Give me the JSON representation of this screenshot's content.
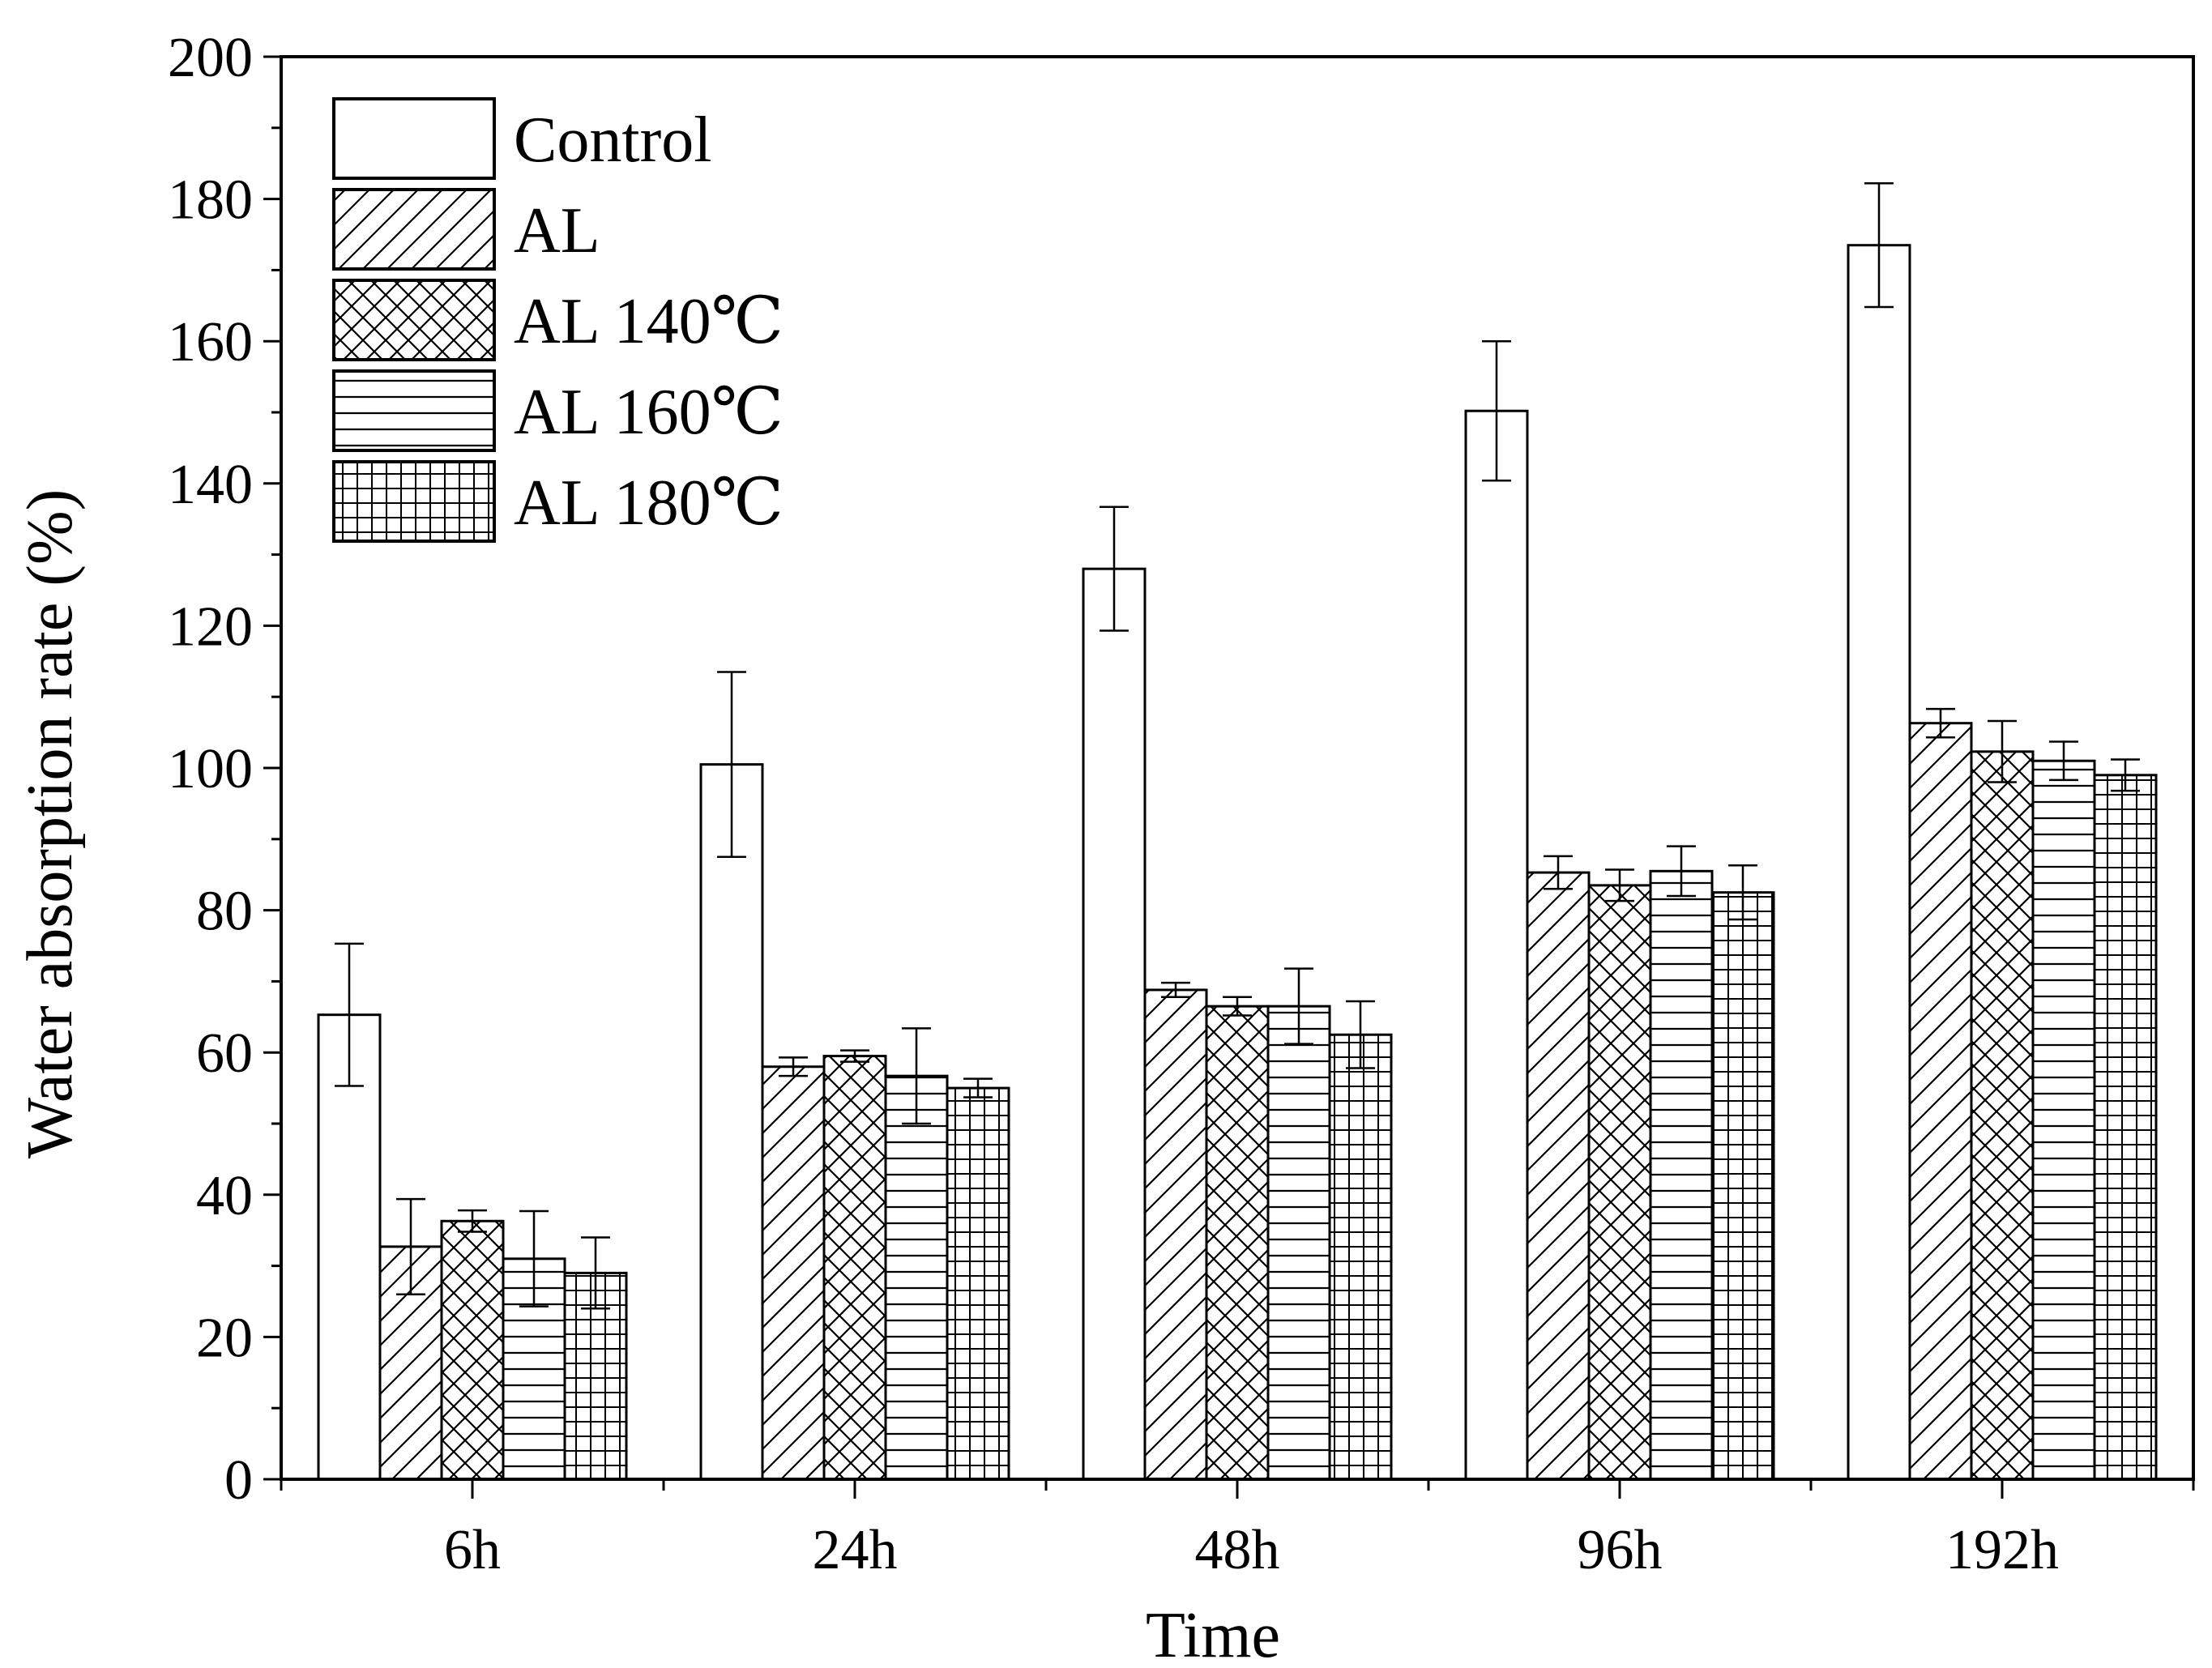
{
  "chart_data": {
    "type": "bar",
    "title": "",
    "xlabel": "Time",
    "ylabel": "Water absorption rate (%)",
    "ylim": [
      0,
      200
    ],
    "yticks": [
      0,
      20,
      40,
      60,
      80,
      100,
      120,
      140,
      160,
      180,
      200
    ],
    "categories": [
      "6h",
      "24h",
      "48h",
      "96h",
      "192h"
    ],
    "legend_position": "top-left",
    "series": [
      {
        "name": "Control",
        "pattern": "none",
        "values": [
          65.3,
          100.5,
          128.0,
          150.2,
          173.5
        ],
        "errors": [
          10.0,
          13.0,
          8.7,
          9.8,
          8.7
        ]
      },
      {
        "name": "AL",
        "pattern": "diagonal",
        "values": [
          32.7,
          58.0,
          68.8,
          85.3,
          106.3
        ],
        "errors": [
          6.7,
          1.3,
          1.0,
          2.3,
          2.0
        ]
      },
      {
        "name": "AL 140℃",
        "pattern": "crosshatch",
        "values": [
          36.3,
          59.5,
          66.5,
          83.5,
          102.3
        ],
        "errors": [
          1.5,
          0.8,
          1.3,
          2.2,
          4.3
        ]
      },
      {
        "name": "AL 160℃",
        "pattern": "horizontal",
        "values": [
          31.0,
          56.7,
          66.5,
          85.5,
          101.0
        ],
        "errors": [
          6.7,
          6.7,
          5.3,
          3.5,
          2.7
        ]
      },
      {
        "name": "AL 180℃",
        "pattern": "grid",
        "values": [
          29.0,
          55.0,
          62.5,
          82.5,
          99.0
        ],
        "errors": [
          5.0,
          1.3,
          4.7,
          3.8,
          2.2
        ]
      }
    ],
    "colors": {
      "stroke": "#000000",
      "fill": "#ffffff"
    }
  }
}
